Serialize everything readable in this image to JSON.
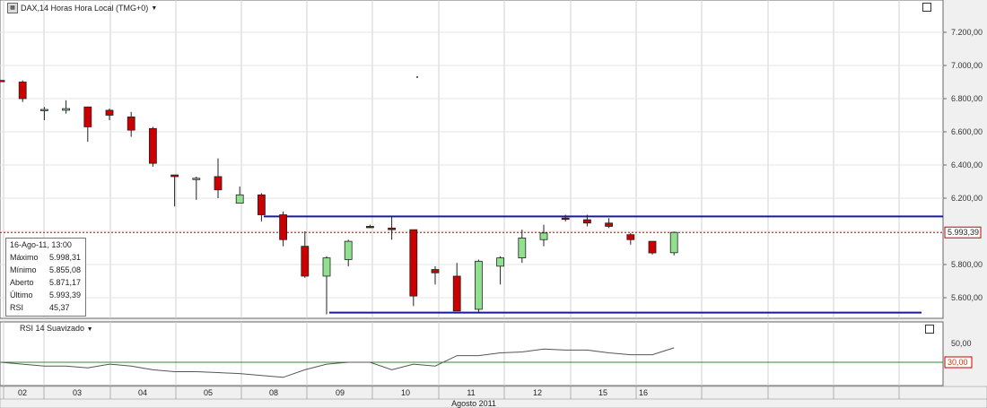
{
  "header": {
    "title": "DAX,14 Horas Hora Local (TMG+0)",
    "dropdown_icon": "chevron-down-icon",
    "chart_icon": "candlestick-chart-icon"
  },
  "info_box": {
    "date": "16-Ago-11, 13:00",
    "rows": [
      {
        "label": "Máximo",
        "value": "5.998,31"
      },
      {
        "label": "Mínimo",
        "value": "5.855,08"
      },
      {
        "label": "Aberto",
        "value": "5.871,17"
      },
      {
        "label": "Último",
        "value": "5.993,39"
      },
      {
        "label": "RSI",
        "value": "45,37"
      }
    ]
  },
  "price_axis": {
    "ticks": [
      "7.200,00",
      "7.000,00",
      "6.800,00",
      "6.600,00",
      "6.400,00",
      "6.200,00",
      "5.800,00",
      "5.600,00"
    ],
    "last_price_label": "5.993,39"
  },
  "rsi_panel": {
    "title": "RSI 14 Suavizado",
    "ticks": [
      "50,00"
    ],
    "threshold_label": "30,00"
  },
  "x_axis": {
    "day_labels": [
      "02",
      "03",
      "04",
      "05",
      "08",
      "09",
      "10",
      "11",
      "12",
      "15",
      "16"
    ],
    "month_label": "Agosto 2011"
  },
  "colors": {
    "up": "#90e090",
    "down": "#cc0000",
    "support_resistance": "#1a1aa0",
    "last_price_line": "#cc0000",
    "rsi_threshold": "#2e8b2e",
    "rsi_line": "#555555"
  },
  "chart_data": [
    {
      "type": "candlestick",
      "title": "DAX,14 Horas Hora Local (TMG+0)",
      "ylim": [
        5500,
        7300
      ],
      "x_categories": [
        "02",
        "03",
        "04",
        "05",
        "08",
        "09",
        "10",
        "11",
        "12",
        "15",
        "16"
      ],
      "candles": [
        {
          "o": 6910,
          "h": 6910,
          "l": 6900,
          "c": 6905
        },
        {
          "o": 6900,
          "h": 6910,
          "l": 6780,
          "c": 6800
        },
        {
          "o": 6730,
          "h": 6750,
          "l": 6670,
          "c": 6735
        },
        {
          "o": 6730,
          "h": 6790,
          "l": 6710,
          "c": 6740
        },
        {
          "o": 6750,
          "h": 6750,
          "l": 6540,
          "c": 6630
        },
        {
          "o": 6730,
          "h": 6740,
          "l": 6670,
          "c": 6700
        },
        {
          "o": 6690,
          "h": 6720,
          "l": 6570,
          "c": 6610
        },
        {
          "o": 6620,
          "h": 6630,
          "l": 6390,
          "c": 6410
        },
        {
          "o": 6340,
          "h": 6340,
          "l": 6150,
          "c": 6330
        },
        {
          "o": 6320,
          "h": 6330,
          "l": 6190,
          "c": 6320
        },
        {
          "o": 6330,
          "h": 6440,
          "l": 6200,
          "c": 6250
        },
        {
          "o": 6170,
          "h": 6270,
          "l": 6170,
          "c": 6220
        },
        {
          "o": 6220,
          "h": 6230,
          "l": 6060,
          "c": 6100
        },
        {
          "o": 6100,
          "h": 6120,
          "l": 5910,
          "c": 5950
        },
        {
          "o": 5910,
          "h": 6000,
          "l": 5720,
          "c": 5730
        },
        {
          "o": 5730,
          "h": 5850,
          "l": 5500,
          "c": 5840
        },
        {
          "o": 5830,
          "h": 5950,
          "l": 5790,
          "c": 5940
        },
        {
          "o": 6030,
          "h": 6040,
          "l": 6020,
          "c": 6025
        },
        {
          "o": 6020,
          "h": 6090,
          "l": 5950,
          "c": 6010
        },
        {
          "o": 6010,
          "h": 6010,
          "l": 5550,
          "c": 5610
        },
        {
          "o": 5770,
          "h": 5790,
          "l": 5680,
          "c": 5750
        },
        {
          "o": 5730,
          "h": 5810,
          "l": 5520,
          "c": 5520
        },
        {
          "o": 5530,
          "h": 5830,
          "l": 5510,
          "c": 5820
        },
        {
          "o": 5790,
          "h": 5850,
          "l": 5680,
          "c": 5840
        },
        {
          "o": 5840,
          "h": 6010,
          "l": 5810,
          "c": 5960
        },
        {
          "o": 5950,
          "h": 6040,
          "l": 5910,
          "c": 5990
        },
        {
          "o": 6080,
          "h": 6100,
          "l": 6060,
          "c": 6075
        },
        {
          "o": 6070,
          "h": 6100,
          "l": 6030,
          "c": 6050
        },
        {
          "o": 6050,
          "h": 6080,
          "l": 6020,
          "c": 6030
        },
        {
          "o": 5980,
          "h": 5990,
          "l": 5920,
          "c": 5950
        },
        {
          "o": 5940,
          "h": 5940,
          "l": 5860,
          "c": 5870
        },
        {
          "o": 5871.17,
          "h": 5998.31,
          "l": 5855.08,
          "c": 5993.39
        }
      ],
      "horizontal_lines": [
        {
          "value": 6090
        },
        {
          "value": 5510
        },
        {
          "value": 5993.39
        }
      ]
    },
    {
      "type": "line",
      "title": "RSI 14 Suavizado",
      "ylim": [
        18,
        62
      ],
      "threshold": 30,
      "values": [
        30,
        28,
        26,
        26,
        24,
        28,
        26,
        22,
        20,
        20,
        19,
        18,
        16,
        14,
        22,
        28,
        30,
        30,
        22,
        28,
        26,
        37,
        37,
        40,
        41,
        44,
        43,
        43,
        40,
        38,
        38,
        45.37
      ]
    }
  ]
}
